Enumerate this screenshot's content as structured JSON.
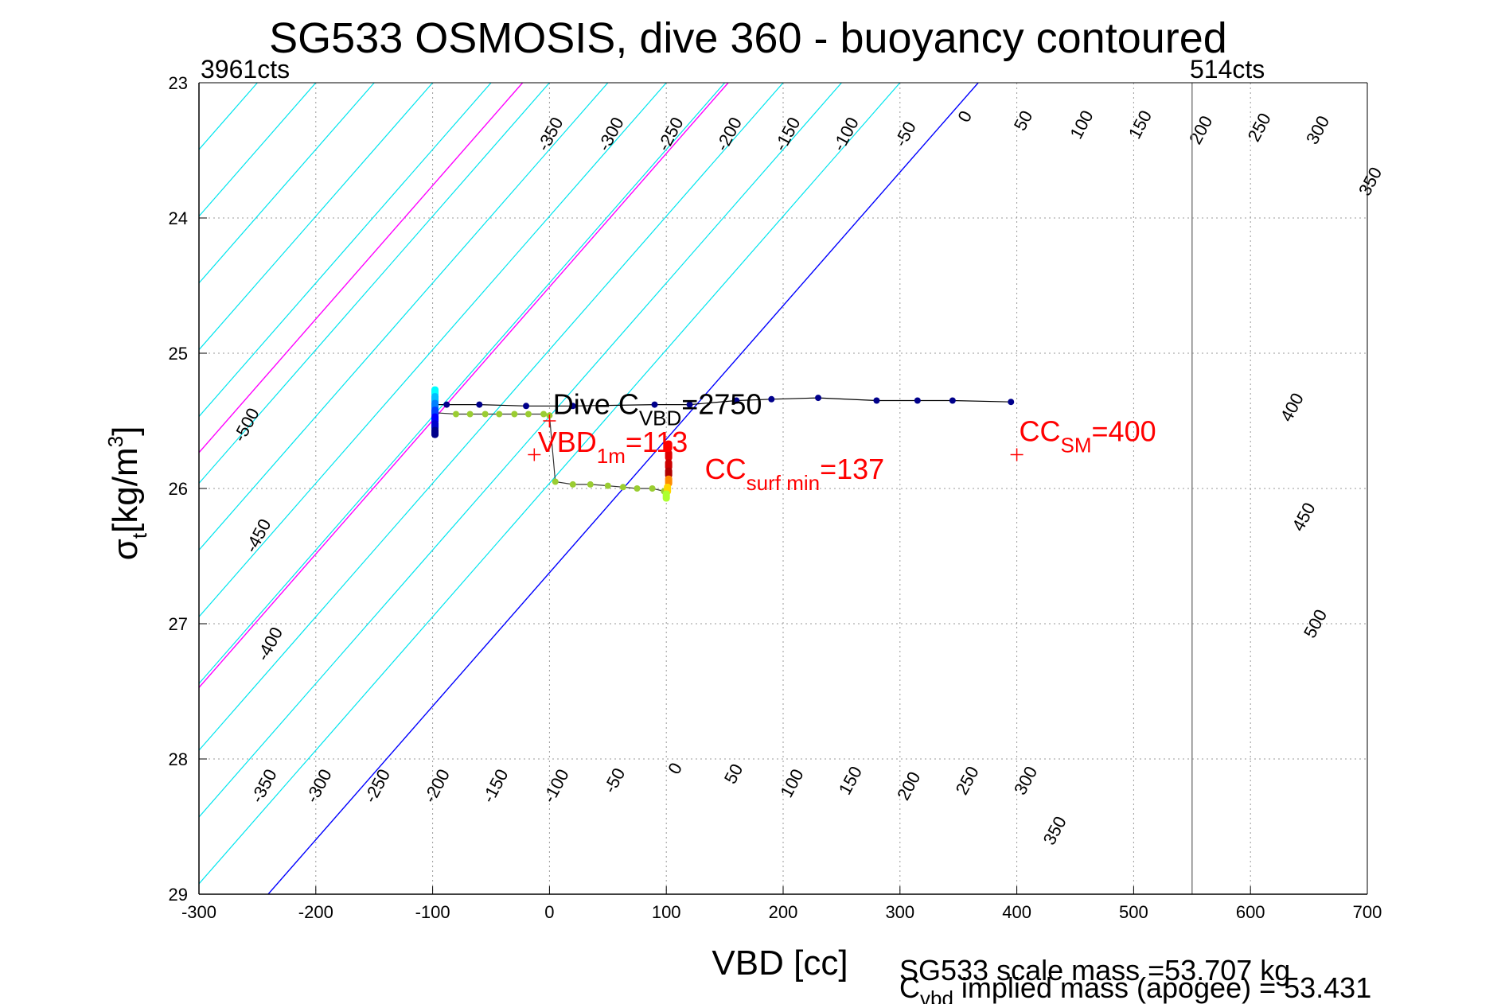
{
  "chart_data": {
    "type": "line",
    "title": "SG533 OSMOSIS, dive 360 - buoyancy contoured",
    "xlabel": "VBD [cc]",
    "ylabel_main": "σ",
    "ylabel_sub": "t",
    "ylabel_unit": "[kg/m",
    "ylabel_sup": "3",
    "ylabel_close": "]",
    "xlim": [
      -300,
      700
    ],
    "ylim": [
      23,
      29
    ],
    "y_reversed": true,
    "grid": true,
    "xticks": [
      -300,
      -200,
      -100,
      0,
      100,
      200,
      300,
      400,
      500,
      600,
      700
    ],
    "xtick_labels": [
      "-300",
      "-200",
      "-100",
      "0",
      "100",
      "200",
      "300",
      "400",
      "500",
      "600",
      "700"
    ],
    "yticks": [
      23,
      24,
      25,
      26,
      27,
      28,
      29
    ],
    "ytick_labels": [
      "23",
      "24",
      "25",
      "26",
      "27",
      "28",
      "29"
    ],
    "contours": {
      "slope_vbd_per_sigma": -101.3,
      "ref_sigma": 23,
      "levels": [
        -500,
        -450,
        -400,
        -350,
        -300,
        -250,
        -200,
        -150,
        -100,
        -50,
        0,
        50,
        100,
        150,
        200,
        250,
        300,
        350,
        400,
        450,
        500
      ],
      "intercepts_at_ref": [
        -700,
        -650,
        -600,
        -550,
        -500,
        -450,
        -400,
        -350,
        -300,
        -250,
        -200,
        -150,
        -100,
        -50,
        0,
        50,
        100,
        150,
        200,
        250,
        300
      ],
      "zero_intercept": 367,
      "magenta_intercepts": [
        -23,
        153
      ],
      "color_default": "#00e5ee",
      "color_zero": "#0000ff",
      "color_magenta": "#ff00ff",
      "labels_upper": [
        {
          "text": "-350",
          "x": 5,
          "y": 23.4
        },
        {
          "text": "-300",
          "x": 57,
          "y": 23.4
        },
        {
          "text": "-250",
          "x": 108,
          "y": 23.4
        },
        {
          "text": "-200",
          "x": 158,
          "y": 23.4
        },
        {
          "text": "-150",
          "x": 208,
          "y": 23.4
        },
        {
          "text": "-100",
          "x": 258,
          "y": 23.4
        },
        {
          "text": "-50",
          "x": 309,
          "y": 23.4
        },
        {
          "text": "0",
          "x": 360,
          "y": 23.27
        },
        {
          "text": "50",
          "x": 410,
          "y": 23.3
        },
        {
          "text": "100",
          "x": 460,
          "y": 23.33
        },
        {
          "text": "150",
          "x": 510,
          "y": 23.33
        },
        {
          "text": "200",
          "x": 562,
          "y": 23.37
        },
        {
          "text": "250",
          "x": 612,
          "y": 23.35
        },
        {
          "text": "300",
          "x": 662,
          "y": 23.37
        },
        {
          "text": "350",
          "x": 707,
          "y": 23.75
        },
        {
          "text": "-500",
          "x": -255,
          "y": 25.55
        },
        {
          "text": "-450",
          "x": -245,
          "y": 26.37
        },
        {
          "text": "-400",
          "x": -235,
          "y": 27.17
        },
        {
          "text": "400",
          "x": 640,
          "y": 25.42
        },
        {
          "text": "450",
          "x": 650,
          "y": 26.23
        },
        {
          "text": "500",
          "x": 660,
          "y": 27.02
        }
      ],
      "labels_lower": [
        {
          "text": "-350",
          "x": -240,
          "y": 28.22
        },
        {
          "text": "-300",
          "x": -193,
          "y": 28.22
        },
        {
          "text": "-250",
          "x": -143,
          "y": 28.22
        },
        {
          "text": "-200",
          "x": -92,
          "y": 28.22
        },
        {
          "text": "-150",
          "x": -42,
          "y": 28.22
        },
        {
          "text": "-100",
          "x": 10,
          "y": 28.22
        },
        {
          "text": "-50",
          "x": 60,
          "y": 28.18
        },
        {
          "text": "0",
          "x": 112,
          "y": 28.09
        },
        {
          "text": "50",
          "x": 162,
          "y": 28.13
        },
        {
          "text": "100",
          "x": 212,
          "y": 28.2
        },
        {
          "text": "150",
          "x": 262,
          "y": 28.18
        },
        {
          "text": "200",
          "x": 312,
          "y": 28.22
        },
        {
          "text": "250",
          "x": 362,
          "y": 28.18
        },
        {
          "text": "300",
          "x": 412,
          "y": 28.18
        },
        {
          "text": "350",
          "x": 437,
          "y": 28.55
        }
      ]
    },
    "series": [
      {
        "kind": "dive",
        "color": "#00008b",
        "x": [
          -98,
          -88,
          -60,
          -20,
          20,
          90,
          120,
          160,
          190,
          230,
          280,
          315,
          345,
          395
        ],
        "y": [
          25.38,
          25.38,
          25.38,
          25.39,
          25.39,
          25.38,
          25.38,
          25.35,
          25.34,
          25.33,
          25.35,
          25.35,
          25.35,
          25.36
        ]
      },
      {
        "kind": "climb",
        "color": "#9acd32",
        "x": [
          -98,
          -80,
          -68,
          -55,
          -43,
          -30,
          -18,
          -5,
          0,
          5,
          20,
          35,
          50,
          63,
          75,
          88,
          98,
          100
        ],
        "y": [
          25.44,
          25.45,
          25.45,
          25.45,
          25.45,
          25.45,
          25.45,
          25.45,
          25.46,
          25.95,
          25.97,
          25.97,
          25.98,
          25.99,
          26.0,
          26.0,
          26.02,
          26.05
        ]
      },
      {
        "kind": "start-column",
        "color": "#0000cd",
        "x": [
          -98,
          -98,
          -98,
          -98,
          -98,
          -98,
          -98
        ],
        "y": [
          25.28,
          25.33,
          25.38,
          25.43,
          25.48,
          25.53,
          25.58
        ]
      },
      {
        "kind": "end-column",
        "color": "#cc0000",
        "x": [
          102,
          102,
          102,
          102,
          102,
          101,
          100
        ],
        "y": [
          25.68,
          25.75,
          25.82,
          25.88,
          25.94,
          26.0,
          26.05
        ]
      }
    ],
    "markers": [
      {
        "x": 0,
        "y": 25.5,
        "color": "#ff0000"
      },
      {
        "x": -13,
        "y": 25.75,
        "color": "#ff0000"
      },
      {
        "x": 400,
        "y": 25.75,
        "color": "#ff0000"
      }
    ],
    "vertical_line": {
      "x": 550,
      "color": "#808080"
    },
    "annotations": {
      "dive_c": {
        "main": "Dive C",
        "sub": "VBD",
        "value": "=2750",
        "x": 3,
        "y": 25.45,
        "color": "#000000"
      },
      "vbd_1m": {
        "main": "VBD",
        "sub": "1m",
        "value": "=113",
        "x": -10,
        "y": 25.73,
        "color": "#ff0000"
      },
      "cc_surf": {
        "main": "CC",
        "sub": "surf min",
        "value": "=137",
        "x": 133,
        "y": 25.93,
        "color": "#ff0000"
      },
      "cc_sm": {
        "main": "CC",
        "sub": "SM",
        "value": "=400",
        "x": 402,
        "y": 25.65,
        "color": "#ff0000"
      }
    },
    "top_counts": {
      "left": "3961cts",
      "right": "514cts"
    },
    "footer": {
      "line1": "SG533 scale mass =53.707 kg",
      "line2_main": "C",
      "line2_sub": "vbd",
      "line2_rest": " implied mass (apogee) = 53.431"
    }
  }
}
